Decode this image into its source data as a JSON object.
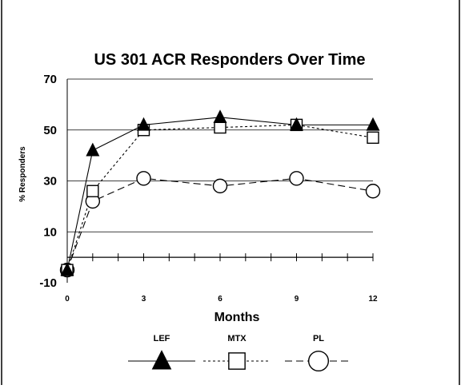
{
  "chart_data": {
    "type": "line",
    "title": "US 301 ACR Responders Over Time",
    "xlabel": "Months",
    "ylabel": "% Responders",
    "ylim": [
      -10,
      70
    ],
    "xlim": [
      0,
      12
    ],
    "yticks": [
      "70",
      "50",
      "30",
      "10",
      "-10"
    ],
    "xticks": [
      "0",
      "3",
      "6",
      "9",
      "12"
    ],
    "grid": true,
    "legend_position": "bottom",
    "series": [
      {
        "name": "LEF",
        "marker": "triangle",
        "line": "solid",
        "x": [
          0,
          1,
          3,
          6,
          9,
          12
        ],
        "y": [
          -5,
          42,
          52,
          55,
          52,
          52
        ]
      },
      {
        "name": "MTX",
        "marker": "square",
        "line": "dotted",
        "x": [
          0,
          1,
          3,
          6,
          9,
          12
        ],
        "y": [
          -5,
          26,
          50,
          51,
          52,
          47
        ]
      },
      {
        "name": "PL",
        "marker": "circle",
        "line": "dashed",
        "x": [
          0,
          1,
          3,
          6,
          9,
          12
        ],
        "y": [
          -5,
          22,
          31,
          28,
          31,
          26
        ]
      }
    ]
  }
}
